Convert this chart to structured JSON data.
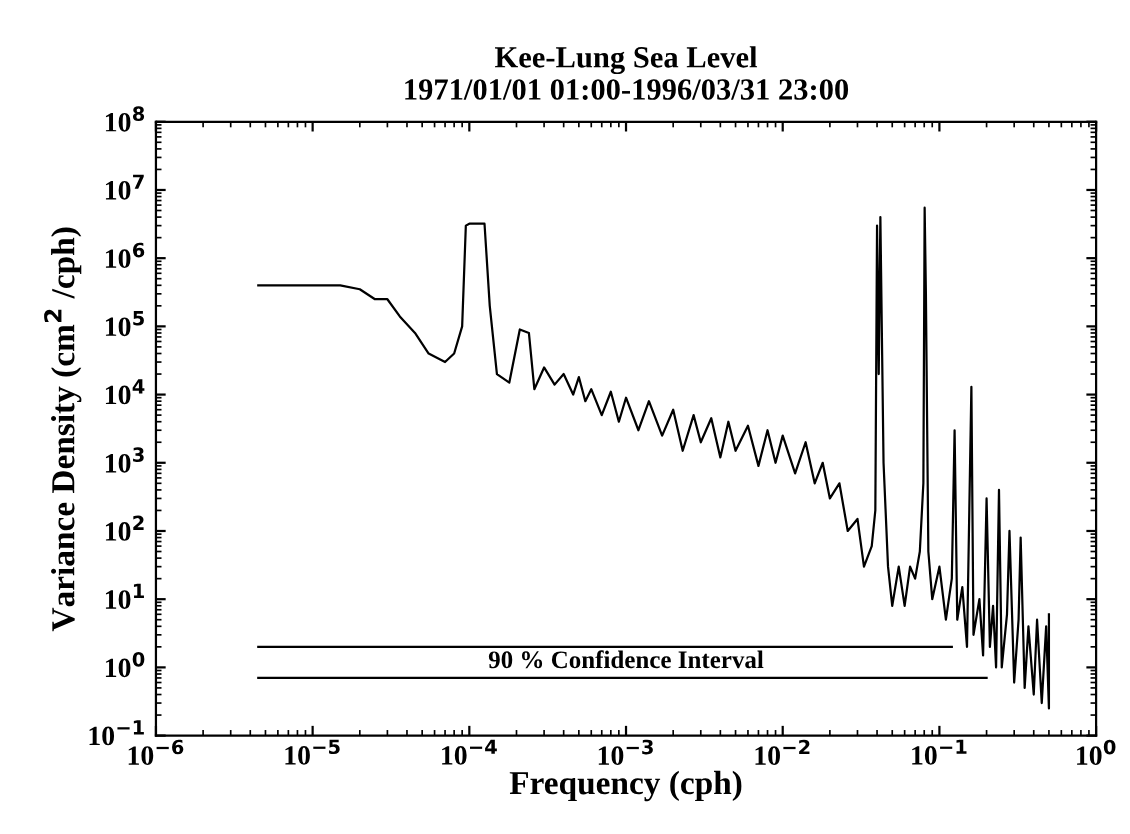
{
  "chart_data": {
    "type": "line",
    "title": "Kee-Lung Sea Level\n1971/01/01 01:00-1996/03/31 23:00",
    "xlabel": "Frequency (cph)",
    "ylabel": "Variance Density (cm$^{2}$ /cph)",
    "log": "xy",
    "grid": false,
    "xlim": [
      1e-06,
      1
    ],
    "ylim": [
      0.1,
      100000000.0
    ],
    "xticks": [
      {
        "value": 1e-06,
        "label": "10$^{−6}$"
      },
      {
        "value": 1e-05,
        "label": "10$^{−5}$"
      },
      {
        "value": 0.0001,
        "label": "10$^{−4}$"
      },
      {
        "value": 0.001,
        "label": "10$^{−3}$"
      },
      {
        "value": 0.01,
        "label": "10$^{−2}$"
      },
      {
        "value": 0.1,
        "label": "10$^{−1}$"
      },
      {
        "value": 1,
        "label": "10$^{0}$"
      }
    ],
    "yticks": [
      {
        "value": 0.1,
        "label": "10$^{−1}$"
      },
      {
        "value": 1,
        "label": "10$^{0}$"
      },
      {
        "value": 10,
        "label": "10$^{1}$"
      },
      {
        "value": 100,
        "label": "10$^{2}$"
      },
      {
        "value": 1000,
        "label": "10$^{3}$"
      },
      {
        "value": 10000,
        "label": "10$^{4}$"
      },
      {
        "value": 100000,
        "label": "10$^{5}$"
      },
      {
        "value": 1000000,
        "label": "10$^{6}$"
      },
      {
        "value": 10000000,
        "label": "10$^{7}$"
      },
      {
        "value": 100000000,
        "label": "10$^{8}$"
      }
    ],
    "annotations": [
      "90 % Confidence Interval"
    ],
    "series": [
      {
        "color": "#000000",
        "x": [
          4.5e-06,
          1.5e-05,
          2e-05,
          2.5e-05,
          3e-05,
          3.6e-05,
          4.5e-05,
          5.5e-05,
          7e-05,
          8e-05,
          9e-05,
          9.5e-05,
          0.0001,
          0.000125,
          0.000135,
          0.00015,
          0.00018,
          0.00021,
          0.00024,
          0.00026,
          0.0003,
          0.00035,
          0.0004,
          0.00046,
          0.0005,
          0.00055,
          0.0006,
          0.0007,
          0.0008,
          0.0009,
          0.001,
          0.0012,
          0.0014,
          0.0017,
          0.002,
          0.0023,
          0.0027,
          0.003,
          0.0035,
          0.004,
          0.0045,
          0.005,
          0.006,
          0.007,
          0.008,
          0.009,
          0.01,
          0.012,
          0.014,
          0.016,
          0.018,
          0.02,
          0.023,
          0.026,
          0.03,
          0.033,
          0.037,
          0.039,
          0.04,
          0.041,
          0.042,
          0.044,
          0.047,
          0.05,
          0.055,
          0.06,
          0.065,
          0.07,
          0.075,
          0.079,
          0.0805,
          0.082,
          0.085,
          0.09,
          0.1,
          0.11,
          0.12,
          0.125,
          0.13,
          0.14,
          0.15,
          0.16,
          0.165,
          0.18,
          0.19,
          0.2,
          0.21,
          0.22,
          0.23,
          0.24,
          0.25,
          0.27,
          0.28,
          0.3,
          0.32,
          0.33,
          0.35,
          0.37,
          0.4,
          0.42,
          0.45,
          0.48,
          0.5,
          0.5
        ],
        "values": [
          400000.0,
          400000.0,
          350000.0,
          250000.0,
          250000.0,
          140000.0,
          80000.0,
          40000.0,
          30000.0,
          40000.0,
          100000.0,
          3000000.0,
          3200000.0,
          3200000.0,
          200000.0,
          20000.0,
          15000.0,
          90000.0,
          80000.0,
          12000.0,
          25000.0,
          14000.0,
          20000.0,
          10000.0,
          18000.0,
          8000.0,
          12000.0,
          5000.0,
          11000.0,
          4000.0,
          9000.0,
          3000.0,
          8000.0,
          2500.0,
          6000.0,
          1500.0,
          5000.0,
          2000.0,
          4500.0,
          1200.0,
          4000.0,
          1500.0,
          3500.0,
          900.0,
          3000.0,
          1000.0,
          2500.0,
          700.0,
          2000.0,
          500.0,
          1000.0,
          300.0,
          500.0,
          100.0,
          150.0,
          30.0,
          60.0,
          200.0,
          3000000.0,
          20000.0,
          4000000.0,
          1000.0,
          30.0,
          8,
          30.0,
          8,
          30.0,
          20.0,
          50.0,
          500.0,
          5500000.0,
          300000.0,
          50.0,
          10.0,
          30.0,
          5,
          20.0,
          3000.0,
          5,
          15.0,
          2,
          13000.0,
          3,
          10.0,
          1.5,
          300.0,
          2,
          8,
          1,
          400.0,
          1,
          6,
          100.0,
          0.6,
          5,
          80.0,
          0.5,
          4,
          0.4,
          5,
          0.3,
          4,
          0.25,
          6
        ]
      },
      {
        "color": "#000000",
        "x": [
          4.5e-06,
          0.12
        ],
        "values": [
          2,
          2
        ]
      },
      {
        "color": "#000000",
        "x": [
          4.5e-06,
          0.2
        ],
        "values": [
          0.7,
          0.7
        ]
      }
    ]
  }
}
